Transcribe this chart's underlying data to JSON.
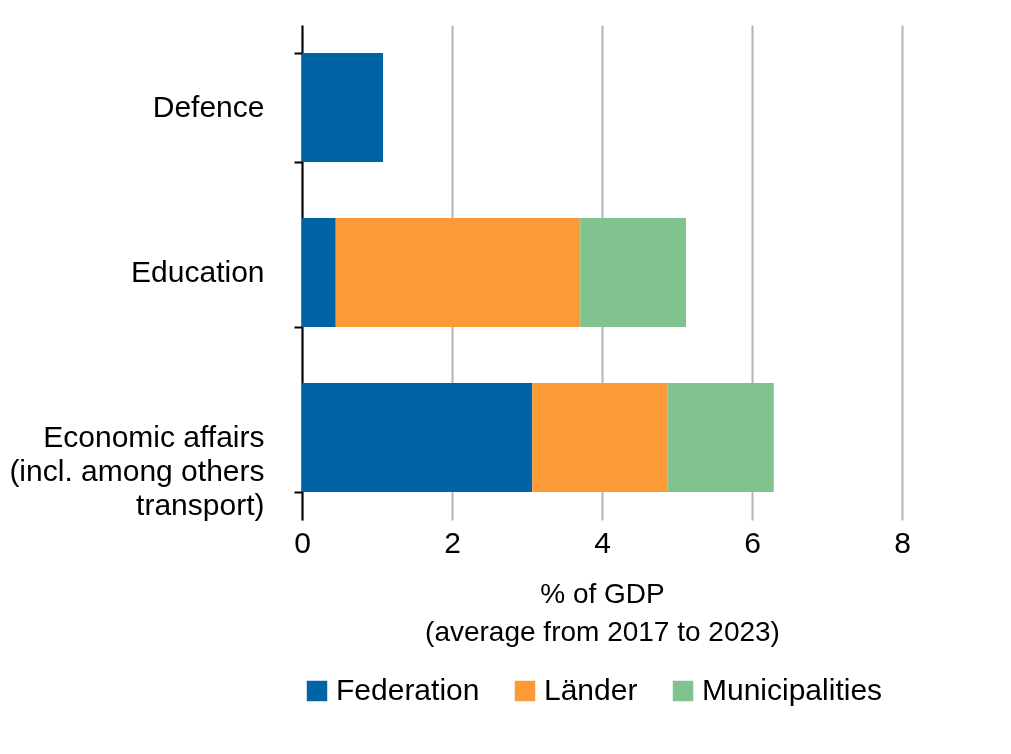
{
  "chart_data": {
    "type": "bar",
    "orientation": "horizontal",
    "stacked": true,
    "categories": [
      "Defence",
      "Education",
      "Economic affairs\n(incl. among others\ntransport)"
    ],
    "series": [
      {
        "name": "Federation",
        "color": "#0063a6",
        "values": [
          1.08,
          0.45,
          3.07
        ]
      },
      {
        "name": "Länder",
        "color": "#fd9a38",
        "values": [
          null,
          3.26,
          1.8
        ]
      },
      {
        "name": "Municipalities",
        "color": "#81c38f",
        "values": [
          null,
          1.41,
          1.42
        ]
      }
    ],
    "xlabel": "% of GDP\n(average from 2017 to 2023)",
    "xlim": [
      0,
      8
    ],
    "xticks": [
      0,
      2,
      4,
      6,
      8
    ],
    "grid": "x",
    "legend": "bottom"
  }
}
